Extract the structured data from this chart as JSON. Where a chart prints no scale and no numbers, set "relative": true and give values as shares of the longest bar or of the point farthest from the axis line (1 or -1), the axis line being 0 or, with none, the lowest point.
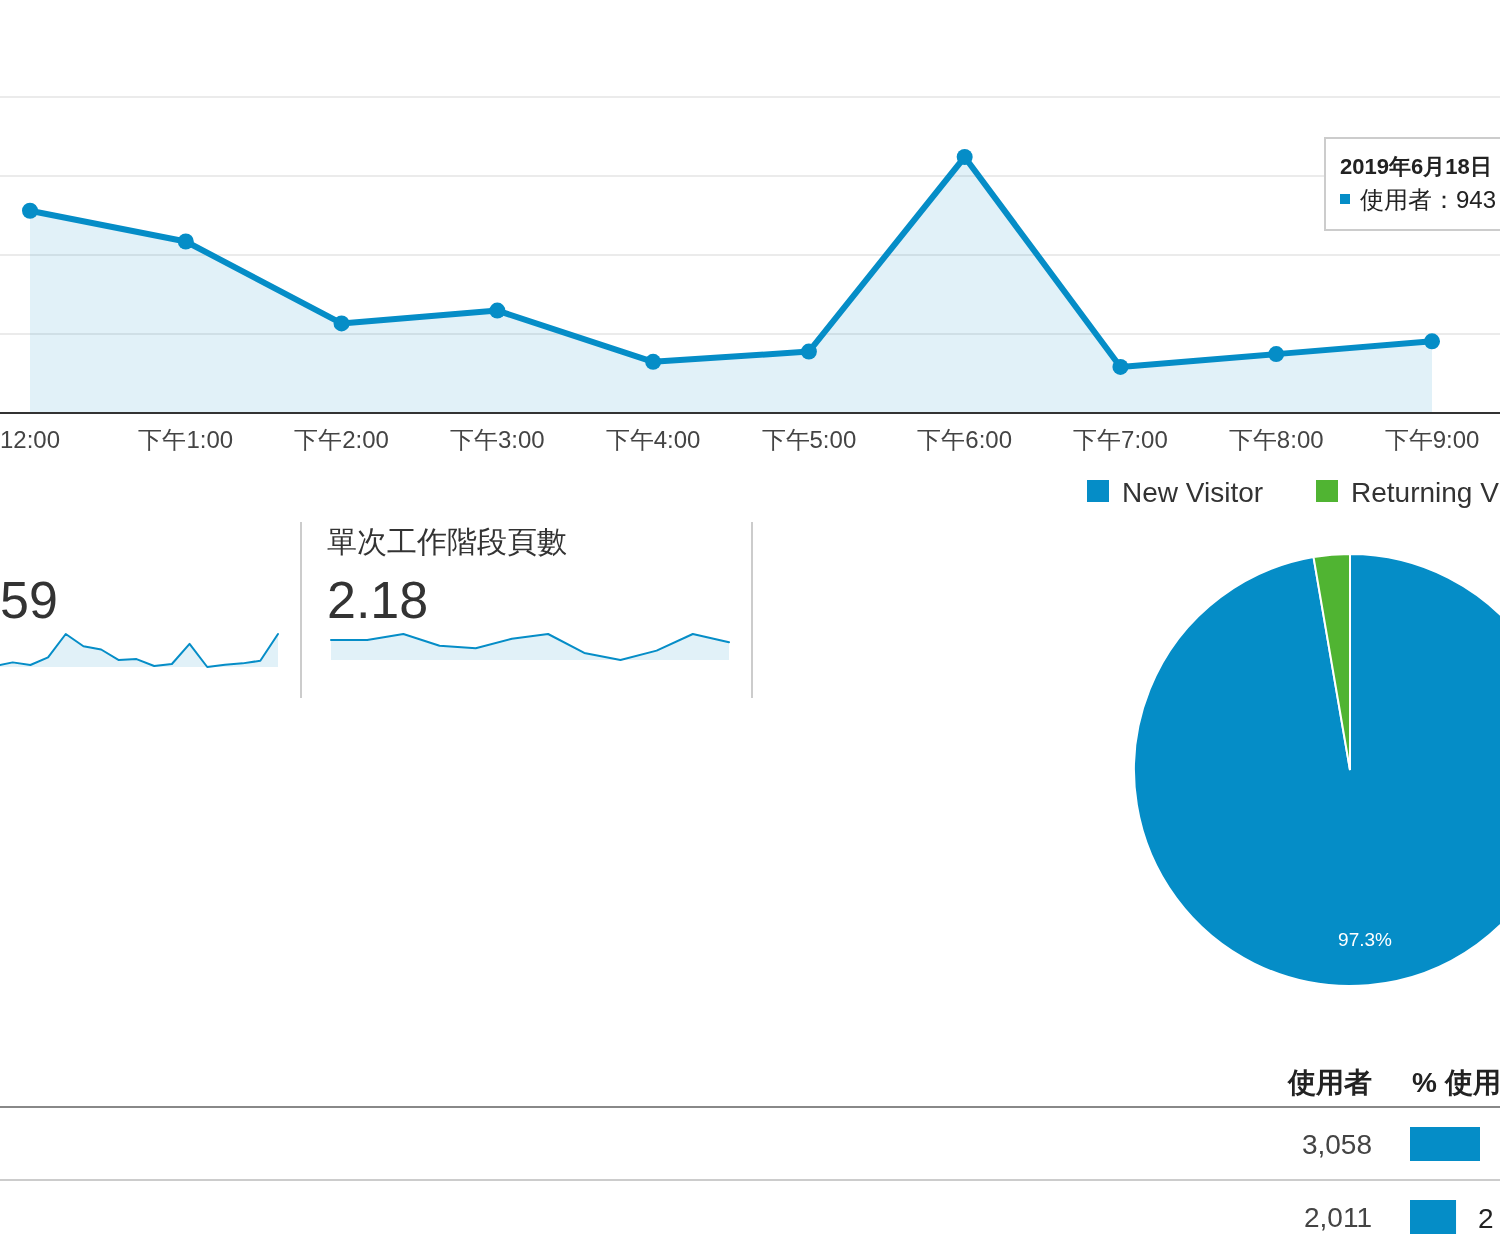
{
  "chart_data": [
    {
      "type": "area",
      "relative": true,
      "categories": [
        "12:00",
        "下午1:00",
        "下午2:00",
        "下午3:00",
        "下午4:00",
        "下午5:00",
        "下午6:00",
        "下午7:00",
        "下午8:00",
        "下午9:00"
      ],
      "values": [
        0.79,
        0.67,
        0.35,
        0.4,
        0.2,
        0.24,
        1,
        0.18,
        0.23,
        0.28
      ],
      "color": "#058dc7",
      "marker": "circle",
      "grid": true,
      "annotations": [
        "2019年6月18日",
        "使用者：943"
      ]
    },
    {
      "type": "area",
      "relative": true,
      "title": "59",
      "categories": [
        null,
        null,
        null,
        null,
        null,
        null,
        null,
        null,
        null,
        null,
        null,
        null,
        null,
        null,
        null,
        null,
        null
      ],
      "values": [
        0.03,
        0.14,
        0.06,
        0.29,
        1,
        0.63,
        0.53,
        0.21,
        0.24,
        0.03,
        0.09,
        0.7,
        0,
        0.07,
        0.11,
        0.19,
        1
      ],
      "color": "#058dc7"
    },
    {
      "type": "area",
      "relative": true,
      "title": "單次工作階段頁數",
      "subtitle": "2.18",
      "categories": [
        null,
        null,
        null,
        null,
        null,
        null,
        null,
        null,
        null,
        null,
        null,
        null
      ],
      "values": [
        0.77,
        0.77,
        1,
        0.55,
        0.45,
        0.82,
        1,
        0.27,
        0,
        0.36,
        1,
        0.68
      ],
      "color": "#058dc7"
    },
    {
      "type": "pie",
      "categories": [
        "New Visitor",
        "Returning V"
      ],
      "values": [
        97.3,
        2.7
      ],
      "colors": [
        "#058dc7",
        "#50b432"
      ],
      "legend": "top",
      "value_labels": [
        "97.3%",
        null
      ]
    },
    {
      "type": "bar",
      "orientation": "horizontal",
      "categories": [
        null,
        null
      ],
      "values": [
        3058,
        2011
      ],
      "value_labels": [
        "3,058",
        "2,011"
      ],
      "color": "#058dc7",
      "annotations": [
        "使用者",
        "% 使用",
        "2"
      ]
    }
  ]
}
